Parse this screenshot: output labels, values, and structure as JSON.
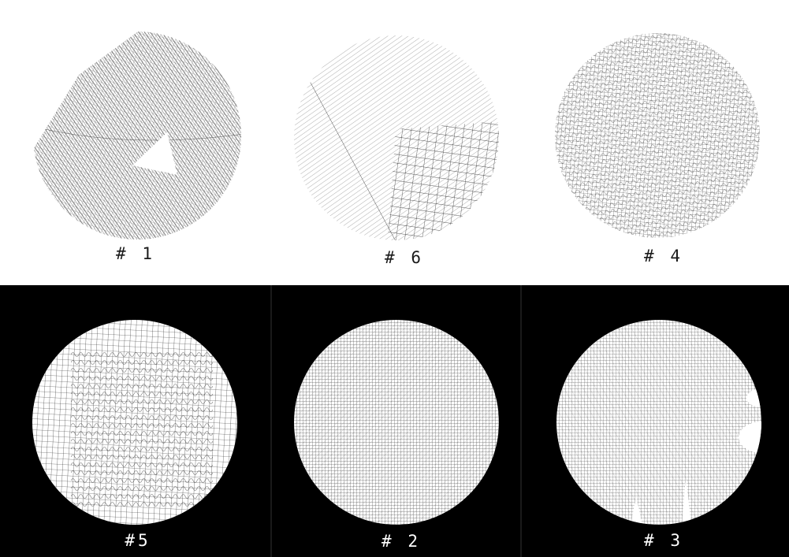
{
  "colors": {
    "top_background": "#ffffff",
    "bottom_background": "#000000",
    "pattern_ink_on_white": "#222222",
    "pattern_ink_on_black": "#111111",
    "label_on_white": "#1a1a1a",
    "label_on_black": "#ffffff"
  },
  "panels": [
    {
      "id": "p1",
      "label": "# 1",
      "pattern": "rotated-wedge-hatch",
      "background": "white"
    },
    {
      "id": "p6",
      "label": "# 6",
      "pattern": "diagonal-flow-grid",
      "background": "white"
    },
    {
      "id": "p4",
      "label": "# 4",
      "pattern": "wavy-grid",
      "background": "white"
    },
    {
      "id": "p5",
      "label": "#5",
      "pattern": "wavy-grid-coarse",
      "background": "black"
    },
    {
      "id": "p2",
      "label": "# 2",
      "pattern": "dense-interference-grid",
      "background": "black"
    },
    {
      "id": "p3",
      "label": "# 3",
      "pattern": "interference-with-notches",
      "background": "black"
    }
  ]
}
